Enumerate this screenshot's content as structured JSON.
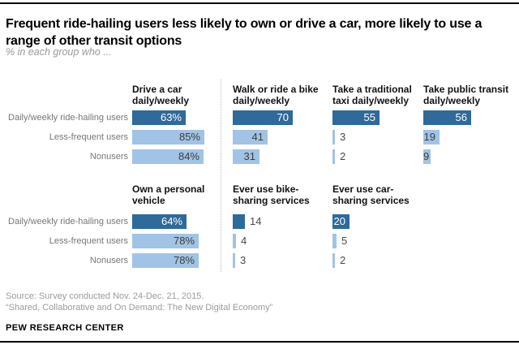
{
  "page": {
    "title": "Frequent ride-hailing users less likely to own or drive a car, more likely to use a range of other transit options",
    "subtitle": "% in each group who ...",
    "source_line1": "Source: Survey conducted Nov. 24-Dec. 21, 2015.",
    "source_line2": "“Shared, Collaborative and On Demand: The New Digital Economy”",
    "brand": "PEW RESEARCH CENTER"
  },
  "colors": {
    "dark_bar": "#2e6a9c",
    "light_bar": "#a1c3e5",
    "divider": "#b8b8b8",
    "row_label_text": "#767676",
    "inside_dark_text": "#ffffff",
    "inside_light_text": "#3d3d3d",
    "outside_text": "#4a4a4a"
  },
  "chart_data": {
    "type": "bar",
    "orientation": "horizontal",
    "unit": "percent",
    "axis_range": [
      0,
      100
    ],
    "grid": false,
    "legend": false,
    "categories": [
      "Daily/weekly ride-hailing users",
      "Less-frequent users",
      "Nonusers"
    ],
    "category_colors": [
      "dark",
      "light",
      "light"
    ],
    "rows": [
      {
        "panels": [
          {
            "title": "Drive a car\ndaily/weekly",
            "values": [
              63,
              85,
              84
            ],
            "labels": [
              "63%",
              "85%",
              "84%"
            ],
            "label_inside": [
              true,
              true,
              true
            ]
          },
          {
            "title": "Walk or ride a bike\ndaily/weekly",
            "values": [
              70,
              41,
              31
            ],
            "labels": [
              "70",
              "41",
              "31"
            ],
            "label_inside": [
              true,
              true,
              true
            ]
          },
          {
            "title": "Take a traditional\ntaxi daily/weekly",
            "values": [
              55,
              3,
              2
            ],
            "labels": [
              "55",
              "3",
              "2"
            ],
            "label_inside": [
              true,
              false,
              false
            ]
          },
          {
            "title": "Take public transit\ndaily/weekly",
            "values": [
              56,
              19,
              9
            ],
            "labels": [
              "56",
              "19",
              "9"
            ],
            "label_inside": [
              true,
              true,
              true
            ]
          }
        ]
      },
      {
        "panels": [
          {
            "title": "Own a personal\nvehicle",
            "values": [
              64,
              78,
              78
            ],
            "labels": [
              "64%",
              "78%",
              "78%"
            ],
            "label_inside": [
              true,
              true,
              true
            ]
          },
          {
            "title": "Ever use bike-\nsharing services",
            "values": [
              14,
              4,
              3
            ],
            "labels": [
              "14",
              "4",
              "3"
            ],
            "label_inside": [
              false,
              false,
              false
            ]
          },
          {
            "title": "Ever use car-\nsharing services",
            "values": [
              20,
              5,
              2
            ],
            "labels": [
              "20",
              "5",
              "2"
            ],
            "label_inside": [
              true,
              false,
              false
            ]
          }
        ]
      }
    ]
  }
}
